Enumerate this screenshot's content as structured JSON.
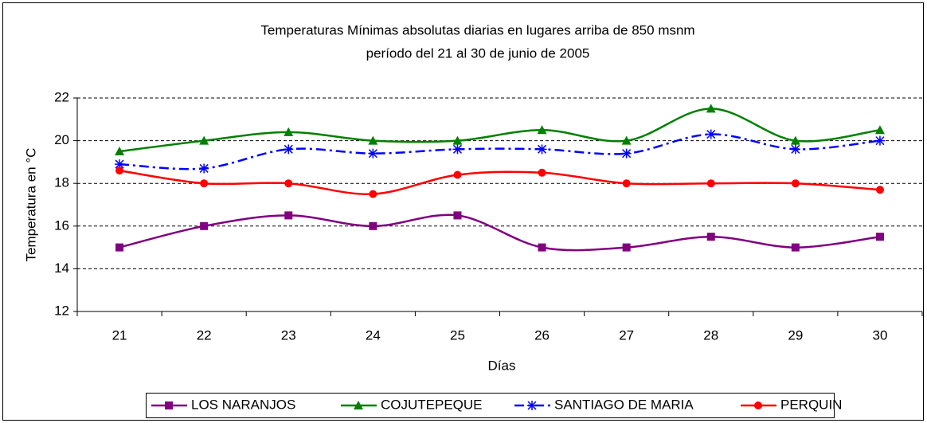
{
  "chart_data": {
    "type": "line",
    "title": "Temperaturas Mínimas absolutas diarias en lugares arriba de 850 msnm",
    "subtitle": "período del 21 al 30 de junio de 2005",
    "x_label": "Días",
    "y_label": "Temperatura en °C",
    "categories": [
      "21",
      "22",
      "23",
      "24",
      "25",
      "26",
      "27",
      "28",
      "29",
      "30"
    ],
    "series": [
      {
        "name": "LOS NARANJOS",
        "color": "#800080",
        "marker": "square",
        "values": [
          15,
          16,
          16.5,
          16,
          16.5,
          15,
          15,
          15.5,
          15,
          15.5
        ]
      },
      {
        "name": "COJUTEPEQUE",
        "color": "#008000",
        "marker": "triangle",
        "values": [
          19.5,
          20,
          20.4,
          20,
          20,
          20.5,
          20,
          21.5,
          20,
          20.5
        ]
      },
      {
        "name": "SANTIAGO DE MARIA",
        "color": "#0000ff",
        "marker": "star",
        "line_style": "dash-dot",
        "values": [
          18.9,
          18.7,
          19.6,
          19.4,
          19.6,
          19.6,
          19.4,
          20.3,
          19.6,
          20
        ]
      },
      {
        "name": "PERQUIN",
        "color": "#ff0000",
        "marker": "circle",
        "values": [
          18.6,
          18,
          18,
          17.5,
          18.4,
          18.5,
          18,
          18,
          18,
          17.7
        ]
      }
    ],
    "ylim": [
      12,
      22
    ],
    "yticks": [
      12,
      14,
      16,
      18,
      20,
      22
    ],
    "grid": true,
    "legend": "bottom"
  }
}
